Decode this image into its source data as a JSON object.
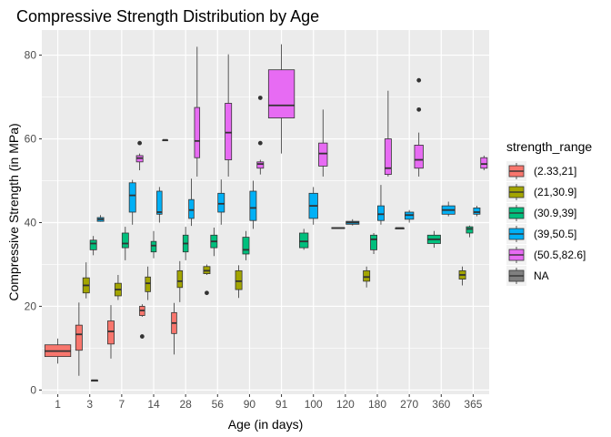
{
  "chart_data": {
    "type": "boxplot",
    "title": "Compressive Strength Distribution by Age",
    "xlabel": "Age (in days)",
    "ylabel": "Compressive Strength (in MPa)",
    "ylim": [
      -1,
      86
    ],
    "yticks": [
      0,
      20,
      40,
      60,
      80
    ],
    "categories": [
      "1",
      "3",
      "7",
      "14",
      "28",
      "56",
      "90",
      "91",
      "100",
      "120",
      "180",
      "270",
      "360",
      "365"
    ],
    "panel_background": "#ebebeb",
    "grid": true,
    "legend": {
      "title": "strength_range",
      "position": "right",
      "entries": [
        {
          "label": "(2.33,21]",
          "color": "#F8766D"
        },
        {
          "label": "(21,30.9]",
          "color": "#A3A500"
        },
        {
          "label": "(30.9,39]",
          "color": "#00BF7D"
        },
        {
          "label": "(39,50.5]",
          "color": "#00B0F6"
        },
        {
          "label": "(50.5,82.6]",
          "color": "#E76BF3"
        },
        {
          "label": "NA",
          "color": "#7F7F7F"
        }
      ]
    },
    "boxes": [
      {
        "age": "1",
        "group": 0,
        "slots": 1,
        "min": 6.3,
        "q1": 8.0,
        "median": 9.3,
        "q3": 10.8,
        "max": 12.3
      },
      {
        "age": "3",
        "group": 0,
        "slots": 4,
        "min": 3.4,
        "q1": 9.5,
        "median": 13.3,
        "q3": 15.5,
        "max": 20.9
      },
      {
        "age": "3",
        "group": 1,
        "slots": 4,
        "min": 21.9,
        "q1": 23.2,
        "median": 25.0,
        "q3": 26.8,
        "max": 30.5
      },
      {
        "age": "3",
        "group": 2,
        "slots": 4,
        "min": 32.2,
        "q1": 33.5,
        "median": 35.0,
        "q3": 35.8,
        "max": 36.8
      },
      {
        "age": "3",
        "group": 3,
        "slots": 4,
        "min": 40.2,
        "q1": 40.3,
        "median": 40.8,
        "q3": 41.2,
        "max": 41.8
      },
      {
        "age": "3",
        "group": 5,
        "slots": 1,
        "nudge": 0.15,
        "width": 0.2,
        "min": 2.3,
        "q1": 2.33,
        "median": 2.33,
        "q3": 2.33,
        "max": 2.4
      },
      {
        "age": "7",
        "group": 0,
        "slots": 4,
        "min": 7.5,
        "q1": 11.0,
        "median": 14.0,
        "q3": 16.5,
        "max": 20.3
      },
      {
        "age": "7",
        "group": 1,
        "slots": 4,
        "min": 21.5,
        "q1": 22.5,
        "median": 24.0,
        "q3": 25.5,
        "max": 27.5
      },
      {
        "age": "7",
        "group": 2,
        "slots": 4,
        "min": 31.0,
        "q1": 34.0,
        "median": 35.0,
        "q3": 37.5,
        "max": 39.0
      },
      {
        "age": "7",
        "group": 3,
        "slots": 4,
        "min": 39.5,
        "q1": 42.5,
        "median": 46.5,
        "q3": 49.5,
        "max": 50.2
      },
      {
        "age": "7",
        "group": 4,
        "slots": 4,
        "min": 52.5,
        "q1": 54.5,
        "median": 55.4,
        "q3": 56.0,
        "max": 56.5,
        "outliers": [
          59.0
        ]
      },
      {
        "age": "14",
        "group": 0,
        "slots": 5,
        "min": 17.5,
        "q1": 17.8,
        "median": 19.0,
        "q3": 20.0,
        "max": 20.5,
        "outliers": [
          12.8
        ]
      },
      {
        "age": "14",
        "group": 1,
        "slots": 5,
        "min": 21.5,
        "q1": 23.5,
        "median": 25.5,
        "q3": 27.0,
        "max": 29.5
      },
      {
        "age": "14",
        "group": 2,
        "slots": 5,
        "min": 31.5,
        "q1": 33.0,
        "median": 34.5,
        "q3": 35.5,
        "max": 38.0
      },
      {
        "age": "14",
        "group": 3,
        "slots": 5,
        "min": 40.0,
        "q1": 42.0,
        "median": 42.5,
        "q3": 47.5,
        "max": 48.5
      },
      {
        "age": "14",
        "group": 4,
        "slots": 5,
        "min": 59.7,
        "q1": 59.76,
        "median": 59.76,
        "q3": 59.76,
        "max": 59.8
      },
      {
        "age": "28",
        "group": 0,
        "slots": 5,
        "min": 8.5,
        "q1": 13.5,
        "median": 16.0,
        "q3": 18.5,
        "max": 20.8
      },
      {
        "age": "28",
        "group": 1,
        "slots": 5,
        "min": 21.0,
        "q1": 24.5,
        "median": 26.0,
        "q3": 28.5,
        "max": 30.8
      },
      {
        "age": "28",
        "group": 2,
        "slots": 5,
        "min": 31.0,
        "q1": 33.0,
        "median": 35.0,
        "q3": 37.0,
        "max": 39.0
      },
      {
        "age": "28",
        "group": 3,
        "slots": 5,
        "min": 39.2,
        "q1": 41.0,
        "median": 43.0,
        "q3": 45.5,
        "max": 50.5
      },
      {
        "age": "28",
        "group": 4,
        "slots": 5,
        "min": 51.0,
        "q1": 55.5,
        "median": 59.5,
        "q3": 67.5,
        "max": 82.0
      },
      {
        "age": "56",
        "group": 1,
        "slots": 4,
        "min": 27.5,
        "q1": 27.8,
        "median": 28.5,
        "q3": 29.5,
        "max": 30.0,
        "outliers": [
          23.2
        ]
      },
      {
        "age": "56",
        "group": 2,
        "slots": 4,
        "min": 32.0,
        "q1": 34.0,
        "median": 35.5,
        "q3": 37.0,
        "max": 38.8
      },
      {
        "age": "56",
        "group": 3,
        "slots": 4,
        "min": 39.5,
        "q1": 42.5,
        "median": 44.5,
        "q3": 47.0,
        "max": 50.3
      },
      {
        "age": "56",
        "group": 4,
        "slots": 4,
        "min": 51.0,
        "q1": 55.0,
        "median": 61.5,
        "q3": 68.5,
        "max": 80.2
      },
      {
        "age": "90",
        "group": 1,
        "slots": 4,
        "min": 22.0,
        "q1": 24.0,
        "median": 26.0,
        "q3": 28.5,
        "max": 29.8
      },
      {
        "age": "90",
        "group": 2,
        "slots": 4,
        "min": 31.0,
        "q1": 32.5,
        "median": 33.5,
        "q3": 36.5,
        "max": 38.0
      },
      {
        "age": "90",
        "group": 3,
        "slots": 4,
        "min": 38.5,
        "q1": 40.5,
        "median": 43.5,
        "q3": 47.5,
        "max": 50.0
      },
      {
        "age": "90",
        "group": 4,
        "slots": 4,
        "min": 51.5,
        "q1": 53.0,
        "median": 54.0,
        "q3": 54.5,
        "max": 55.0,
        "outliers": [
          59.0,
          69.8
        ]
      },
      {
        "age": "91",
        "group": 4,
        "slots": 1,
        "min": 56.5,
        "q1": 65.0,
        "median": 68.0,
        "q3": 76.5,
        "max": 82.6
      },
      {
        "age": "100",
        "group": 2,
        "slots": 3,
        "min": 33.5,
        "q1": 34.0,
        "median": 35.5,
        "q3": 37.5,
        "max": 38.5
      },
      {
        "age": "100",
        "group": 3,
        "slots": 3,
        "min": 39.5,
        "q1": 41.0,
        "median": 44.0,
        "q3": 47.0,
        "max": 48.5
      },
      {
        "age": "100",
        "group": 4,
        "slots": 3,
        "min": 51.0,
        "q1": 53.5,
        "median": 56.5,
        "q3": 59.0,
        "max": 67.0
      },
      {
        "age": "120",
        "group": 2,
        "slots": 2,
        "min": 38.7,
        "q1": 38.7,
        "median": 38.7,
        "q3": 38.8,
        "max": 38.8
      },
      {
        "age": "120",
        "group": 3,
        "slots": 2,
        "min": 39.3,
        "q1": 39.6,
        "median": 40.0,
        "q3": 40.3,
        "max": 40.8
      },
      {
        "age": "180",
        "group": 1,
        "slots": 4,
        "min": 24.5,
        "q1": 26.0,
        "median": 27.0,
        "q3": 28.5,
        "max": 29.5
      },
      {
        "age": "180",
        "group": 2,
        "slots": 4,
        "min": 32.5,
        "q1": 33.5,
        "median": 36.0,
        "q3": 37.0,
        "max": 37.5
      },
      {
        "age": "180",
        "group": 3,
        "slots": 4,
        "min": 39.5,
        "q1": 40.5,
        "median": 42.0,
        "q3": 44.0,
        "max": 49.0
      },
      {
        "age": "180",
        "group": 4,
        "slots": 4,
        "min": 51.0,
        "q1": 51.5,
        "median": 53.0,
        "q3": 60.0,
        "max": 71.5
      },
      {
        "age": "270",
        "group": 2,
        "slots": 3,
        "min": 38.6,
        "q1": 38.6,
        "median": 38.7,
        "q3": 38.7,
        "max": 38.8
      },
      {
        "age": "270",
        "group": 3,
        "slots": 3,
        "min": 40.0,
        "q1": 40.8,
        "median": 41.8,
        "q3": 42.5,
        "max": 43.0
      },
      {
        "age": "270",
        "group": 4,
        "slots": 3,
        "min": 51.0,
        "q1": 53.0,
        "median": 55.0,
        "q3": 58.5,
        "max": 61.5,
        "outliers": [
          67.0,
          74.0
        ]
      },
      {
        "age": "360",
        "group": 2,
        "slots": 2,
        "min": 34.0,
        "q1": 35.0,
        "median": 36.0,
        "q3": 37.0,
        "max": 38.0
      },
      {
        "age": "360",
        "group": 3,
        "slots": 2,
        "min": 41.5,
        "q1": 42.0,
        "median": 43.0,
        "q3": 44.0,
        "max": 45.0
      },
      {
        "age": "365",
        "group": 1,
        "slots": 4,
        "min": 25.0,
        "q1": 26.5,
        "median": 27.5,
        "q3": 28.5,
        "max": 29.5
      },
      {
        "age": "365",
        "group": 2,
        "slots": 4,
        "min": 36.5,
        "q1": 37.5,
        "median": 38.5,
        "q3": 39.0,
        "max": 39.3
      },
      {
        "age": "365",
        "group": 3,
        "slots": 4,
        "min": 41.5,
        "q1": 42.0,
        "median": 42.5,
        "q3": 43.5,
        "max": 44.0
      },
      {
        "age": "365",
        "group": 4,
        "slots": 4,
        "min": 52.5,
        "q1": 53.0,
        "median": 54.0,
        "q3": 55.5,
        "max": 56.0
      }
    ]
  }
}
